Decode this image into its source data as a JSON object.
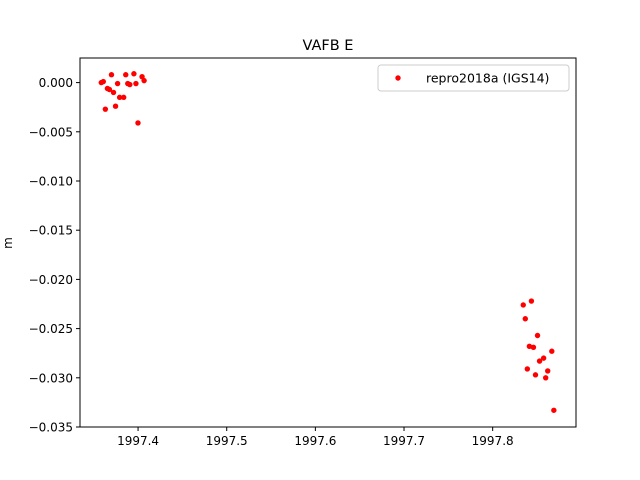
{
  "chart_data": {
    "type": "scatter",
    "title": "VAFB E",
    "xlabel": "",
    "ylabel": "m",
    "xlim": [
      1997.3345,
      1997.894
    ],
    "ylim": [
      -0.035,
      0.0025
    ],
    "xticks": [
      1997.4,
      1997.5,
      1997.6,
      1997.7,
      1997.8
    ],
    "xtick_labels": [
      "1997.4",
      "1997.5",
      "1997.6",
      "1997.7",
      "1997.8"
    ],
    "yticks": [
      0.0,
      -0.005,
      -0.01,
      -0.015,
      -0.02,
      -0.025,
      -0.03,
      -0.035
    ],
    "ytick_labels": [
      "0.000",
      "−0.005",
      "−0.010",
      "−0.015",
      "−0.020",
      "−0.025",
      "−0.030",
      "−0.035"
    ],
    "grid": false,
    "legend_position": "top-right",
    "series": [
      {
        "name": "repro2018a (IGS14)",
        "color": "#ff0000",
        "marker": "circle",
        "points": [
          [
            1997.3585,
            0.0
          ],
          [
            1997.3608,
            0.0001
          ],
          [
            1997.3631,
            -0.0027
          ],
          [
            1997.3654,
            -0.0006
          ],
          [
            1997.3677,
            -0.0007
          ],
          [
            1997.37,
            0.0008
          ],
          [
            1997.3723,
            -0.001
          ],
          [
            1997.3746,
            -0.0024
          ],
          [
            1997.3769,
            -0.0001
          ],
          [
            1997.3792,
            -0.0015
          ],
          [
            1997.3838,
            -0.0015
          ],
          [
            1997.3861,
            0.0008
          ],
          [
            1997.3884,
            -0.0001
          ],
          [
            1997.3907,
            -0.0002
          ],
          [
            1997.3953,
            0.0009
          ],
          [
            1997.3976,
            -0.0001
          ],
          [
            1997.3999,
            -0.0041
          ],
          [
            1997.4045,
            0.0006
          ],
          [
            1997.4068,
            0.0002
          ],
          [
            1997.8345,
            -0.0226
          ],
          [
            1997.8368,
            -0.024
          ],
          [
            1997.8391,
            -0.0291
          ],
          [
            1997.8414,
            -0.0268
          ],
          [
            1997.8437,
            -0.0222
          ],
          [
            1997.846,
            -0.0269
          ],
          [
            1997.8483,
            -0.0297
          ],
          [
            1997.8506,
            -0.0257
          ],
          [
            1997.8529,
            -0.0283
          ],
          [
            1997.8575,
            -0.028
          ],
          [
            1997.8598,
            -0.03
          ],
          [
            1997.8621,
            -0.0293
          ],
          [
            1997.8667,
            -0.0273
          ],
          [
            1997.869,
            -0.0333
          ]
        ]
      }
    ]
  }
}
